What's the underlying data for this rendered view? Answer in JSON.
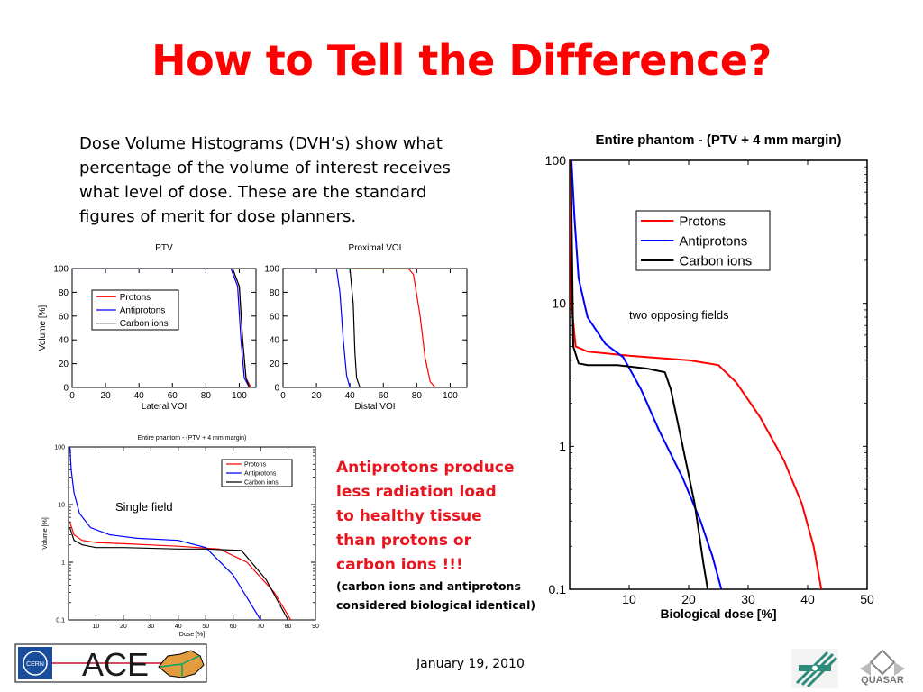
{
  "slide": {
    "title": "How to Tell the Difference?",
    "intro_text": "Dose Volume Histograms (DVH’s) show what percentage of the volume of interest receives what level of dose. These are the standard figures of merit for dose planners.",
    "callout_lines": [
      "Antiprotons produce",
      "less radiation load",
      "to healthy tissue",
      "than  protons or",
      "carbon ions !!!"
    ],
    "callout_note_lines": [
      "(carbon ions and  antiprotons",
      "considered biological identical)"
    ],
    "footer_date": "January 19, 2010",
    "colors": {
      "title": "#ff0000",
      "callout": "#e8141e",
      "protons": "#ff0000",
      "antiprotons": "#0000ff",
      "carbon": "#000000"
    },
    "logos": {
      "left_text": "ACE",
      "left_small": "CERN",
      "right_text": "QUASAR"
    }
  },
  "chart_data": [
    {
      "type": "line",
      "title": "PTV",
      "xlabel": "Lateral VOI",
      "ylabel": "Volume [%]",
      "xlim": [
        0,
        110
      ],
      "ylim": [
        0,
        100
      ],
      "xticks": [
        "0",
        "20",
        "40",
        "60",
        "80",
        "100"
      ],
      "yticks": [
        "0",
        "20",
        "40",
        "60",
        "80",
        "100"
      ],
      "legend": "top-left",
      "series": [
        {
          "name": "Protons",
          "color": "#ff0000",
          "x": [
            0,
            96,
            100,
            102,
            104,
            107
          ],
          "y": [
            100,
            100,
            85,
            40,
            8,
            0
          ]
        },
        {
          "name": "Antiprotons",
          "color": "#0000ff",
          "x": [
            0,
            95,
            99,
            101,
            103,
            106
          ],
          "y": [
            100,
            100,
            85,
            40,
            8,
            0
          ]
        },
        {
          "name": "Carbon ions",
          "color": "#000000",
          "x": [
            0,
            96,
            100,
            102,
            104,
            106
          ],
          "y": [
            100,
            100,
            85,
            40,
            8,
            0
          ]
        }
      ]
    },
    {
      "type": "line",
      "title": "Proximal VOI",
      "xlabel": "Distal VOI",
      "ylabel": "",
      "xlim": [
        0,
        110
      ],
      "ylim": [
        0,
        100
      ],
      "xticks": [
        "0",
        "20",
        "40",
        "60",
        "80",
        "100"
      ],
      "yticks": [
        "0",
        "20",
        "40",
        "60",
        "80",
        "100"
      ],
      "series": [
        {
          "name": "Protons",
          "color": "#ff0000",
          "x": [
            0,
            75,
            78,
            82,
            85,
            88,
            91
          ],
          "y": [
            100,
            100,
            95,
            60,
            25,
            5,
            0
          ]
        },
        {
          "name": "Antiprotons",
          "color": "#0000ff",
          "x": [
            0,
            32,
            34,
            36,
            38,
            40
          ],
          "y": [
            100,
            100,
            80,
            40,
            10,
            0
          ]
        },
        {
          "name": "Carbon ions",
          "color": "#000000",
          "x": [
            0,
            40,
            42,
            43,
            44,
            46
          ],
          "y": [
            100,
            100,
            70,
            30,
            8,
            0
          ]
        }
      ]
    },
    {
      "type": "line",
      "title": "Entire phantom - (PTV + 4 mm margin)",
      "annotation": "Single field",
      "xlabel": "Dose [%]",
      "ylabel": "Volume [%]",
      "yscale": "log",
      "xlim": [
        0,
        90
      ],
      "ylim": [
        0.1,
        100
      ],
      "xticks": [
        "10",
        "20",
        "30",
        "40",
        "50",
        "60",
        "70",
        "80",
        "90"
      ],
      "yticks": [
        "0.1",
        "1",
        "10",
        "100"
      ],
      "legend": "top-right",
      "series": [
        {
          "name": "Protons",
          "color": "#ff0000",
          "x": [
            0.5,
            2,
            5,
            10,
            20,
            40,
            55,
            65,
            75,
            81
          ],
          "y": [
            5,
            3,
            2.4,
            2.2,
            2.1,
            1.9,
            1.7,
            1,
            0.3,
            0.1
          ]
        },
        {
          "name": "Antiprotons",
          "color": "#0000ff",
          "x": [
            0.5,
            1,
            2,
            4,
            8,
            15,
            25,
            40,
            50,
            60,
            70
          ],
          "y": [
            100,
            40,
            16,
            7,
            4,
            3,
            2.6,
            2.4,
            1.8,
            0.6,
            0.1
          ]
        },
        {
          "name": "Carbon ions",
          "color": "#000000",
          "x": [
            0.5,
            2,
            5,
            10,
            20,
            40,
            50,
            63,
            72,
            80
          ],
          "y": [
            4,
            2.4,
            2,
            1.8,
            1.8,
            1.7,
            1.7,
            1.6,
            0.5,
            0.1
          ]
        }
      ]
    },
    {
      "type": "line",
      "title": "Entire phantom - (PTV + 4 mm margin)",
      "annotation": "two opposing fields",
      "xlabel": "Biological dose [%]",
      "ylabel": "",
      "yscale": "log",
      "xlim": [
        0,
        50
      ],
      "ylim": [
        0.1,
        100
      ],
      "xticks": [
        "10",
        "20",
        "30",
        "40",
        "50"
      ],
      "yticks": [
        "0.1",
        "1",
        "10",
        "100"
      ],
      "legend": "top-center",
      "series": [
        {
          "name": "Protons",
          "color": "#ff0000",
          "x": [
            0,
            0.3,
            1,
            3,
            10,
            20,
            25,
            28,
            32,
            36,
            39,
            41,
            42.3
          ],
          "y": [
            100,
            10,
            5,
            4.6,
            4.3,
            4,
            3.7,
            2.8,
            1.6,
            0.8,
            0.4,
            0.2,
            0.1
          ]
        },
        {
          "name": "Antiprotons",
          "color": "#0000ff",
          "x": [
            0.3,
            0.8,
            1.5,
            3,
            6,
            9,
            12,
            15,
            19,
            22,
            24,
            25.5
          ],
          "y": [
            100,
            40,
            15,
            8,
            5.2,
            4.2,
            2.5,
            1.3,
            0.6,
            0.3,
            0.17,
            0.1
          ]
        },
        {
          "name": "Carbon ions",
          "color": "#000000",
          "x": [
            0.2,
            0.6,
            1.5,
            3,
            8,
            13,
            16,
            17,
            19,
            21,
            22.5,
            23.2
          ],
          "y": [
            100,
            5,
            3.8,
            3.7,
            3.7,
            3.5,
            3.3,
            2.5,
            1,
            0.4,
            0.15,
            0.1
          ]
        }
      ]
    }
  ]
}
